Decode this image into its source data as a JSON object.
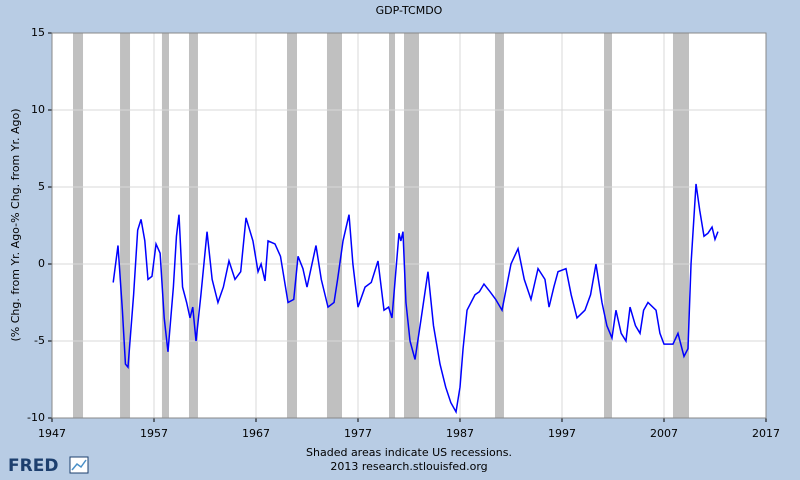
{
  "chart_data": {
    "type": "line",
    "title": "GDP-TCMDO",
    "y_label": "(% Chg. from Yr. Ago-% Chg. from Yr. Ago)",
    "footer": [
      "Shaded areas indicate US recessions.",
      "2013 research.stlouisfed.org"
    ],
    "logo": "FRED",
    "xlim": [
      1947,
      2017
    ],
    "xticks": [
      1947,
      1957,
      1967,
      1977,
      1987,
      1997,
      2007,
      2017
    ],
    "ylim": [
      -10,
      15
    ],
    "yticks": [
      -10,
      -5,
      0,
      5,
      10,
      15
    ],
    "grid": true,
    "recession_color": "#c0c0c0",
    "recessions": [
      [
        1949.06,
        1950.04
      ],
      [
        1953.67,
        1954.65
      ],
      [
        1957.78,
        1958.47
      ],
      [
        1960.43,
        1961.31
      ],
      [
        1970.04,
        1971.02
      ],
      [
        1973.96,
        1975.43
      ],
      [
        1980.04,
        1980.63
      ],
      [
        1981.51,
        1982.98
      ],
      [
        1990.43,
        1991.31
      ],
      [
        2001.12,
        2001.9
      ],
      [
        2007.88,
        2009.45
      ]
    ],
    "series": [
      {
        "name": "GDP-TCMDO",
        "color": "#0000ff",
        "x": [
          1953.0,
          1953.47,
          1953.9,
          1954.2,
          1954.45,
          1955.0,
          1955.4,
          1955.73,
          1956.1,
          1956.41,
          1956.8,
          1957.2,
          1957.6,
          1958.0,
          1958.37,
          1958.9,
          1959.2,
          1959.45,
          1959.8,
          1960.2,
          1960.53,
          1960.8,
          1961.12,
          1961.6,
          1962.2,
          1962.7,
          1963.27,
          1963.8,
          1964.35,
          1964.94,
          1965.5,
          1966.02,
          1966.7,
          1967.2,
          1967.5,
          1967.88,
          1968.18,
          1968.86,
          1969.4,
          1970.14,
          1970.7,
          1971.12,
          1971.6,
          1972.0,
          1972.88,
          1973.4,
          1974.06,
          1974.65,
          1975.0,
          1975.53,
          1976.12,
          1976.5,
          1977.0,
          1977.69,
          1978.3,
          1978.96,
          1979.55,
          1980.0,
          1980.33,
          1981.02,
          1981.2,
          1981.41,
          1981.7,
          1982.1,
          1982.59,
          1983.2,
          1983.86,
          1984.4,
          1985.04,
          1985.6,
          1986.1,
          1986.61,
          1987.0,
          1987.3,
          1987.69,
          1988.47,
          1988.9,
          1989.35,
          1989.94,
          1990.5,
          1991.12,
          1992.0,
          1992.69,
          1993.3,
          1993.96,
          1994.65,
          1995.33,
          1995.73,
          1996.2,
          1996.61,
          1997.39,
          1997.9,
          1998.47,
          1999.25,
          1999.8,
          2000.33,
          2000.92,
          2001.4,
          2001.9,
          2002.29,
          2002.8,
          2003.27,
          2003.67,
          2004.2,
          2004.65,
          2005.0,
          2005.43,
          2006.22,
          2006.6,
          2007.0,
          2007.88,
          2008.37,
          2008.96,
          2009.35,
          2009.65,
          2010.14,
          2010.5,
          2010.92,
          2011.31,
          2011.71,
          2012.0,
          2012.29
        ],
        "values": [
          -1.2,
          1.2,
          -3.0,
          -6.5,
          -6.7,
          -2.0,
          2.2,
          2.9,
          1.5,
          -1.0,
          -0.8,
          1.3,
          0.7,
          -3.5,
          -5.7,
          -1.5,
          1.8,
          3.2,
          -1.5,
          -2.5,
          -3.5,
          -2.8,
          -5.0,
          -2.0,
          2.1,
          -1.0,
          -2.5,
          -1.5,
          0.2,
          -1.0,
          -0.5,
          3.0,
          1.5,
          -0.5,
          0.0,
          -1.1,
          1.5,
          1.3,
          0.5,
          -2.5,
          -2.3,
          0.5,
          -0.3,
          -1.5,
          1.2,
          -1.0,
          -2.8,
          -2.5,
          -1.0,
          1.5,
          3.2,
          0.0,
          -2.8,
          -1.5,
          -1.2,
          0.2,
          -3.0,
          -2.8,
          -3.5,
          2.0,
          1.5,
          2.1,
          -2.5,
          -5.0,
          -6.2,
          -3.5,
          -0.5,
          -4.0,
          -6.5,
          -8.0,
          -9.0,
          -9.6,
          -8.0,
          -5.5,
          -3.0,
          -2.0,
          -1.8,
          -1.3,
          -1.8,
          -2.3,
          -3.0,
          0.0,
          1.0,
          -1.0,
          -2.3,
          -0.3,
          -1.0,
          -2.8,
          -1.5,
          -0.5,
          -0.3,
          -2.0,
          -3.5,
          -3.0,
          -2.0,
          0.0,
          -2.5,
          -4.0,
          -4.8,
          -3.0,
          -4.5,
          -5.0,
          -2.8,
          -4.0,
          -4.5,
          -3.0,
          -2.5,
          -3.0,
          -4.5,
          -5.2,
          -5.2,
          -4.5,
          -6.0,
          -5.5,
          0.0,
          5.2,
          3.5,
          1.8,
          2.0,
          2.4,
          1.6,
          2.1
        ]
      }
    ]
  }
}
